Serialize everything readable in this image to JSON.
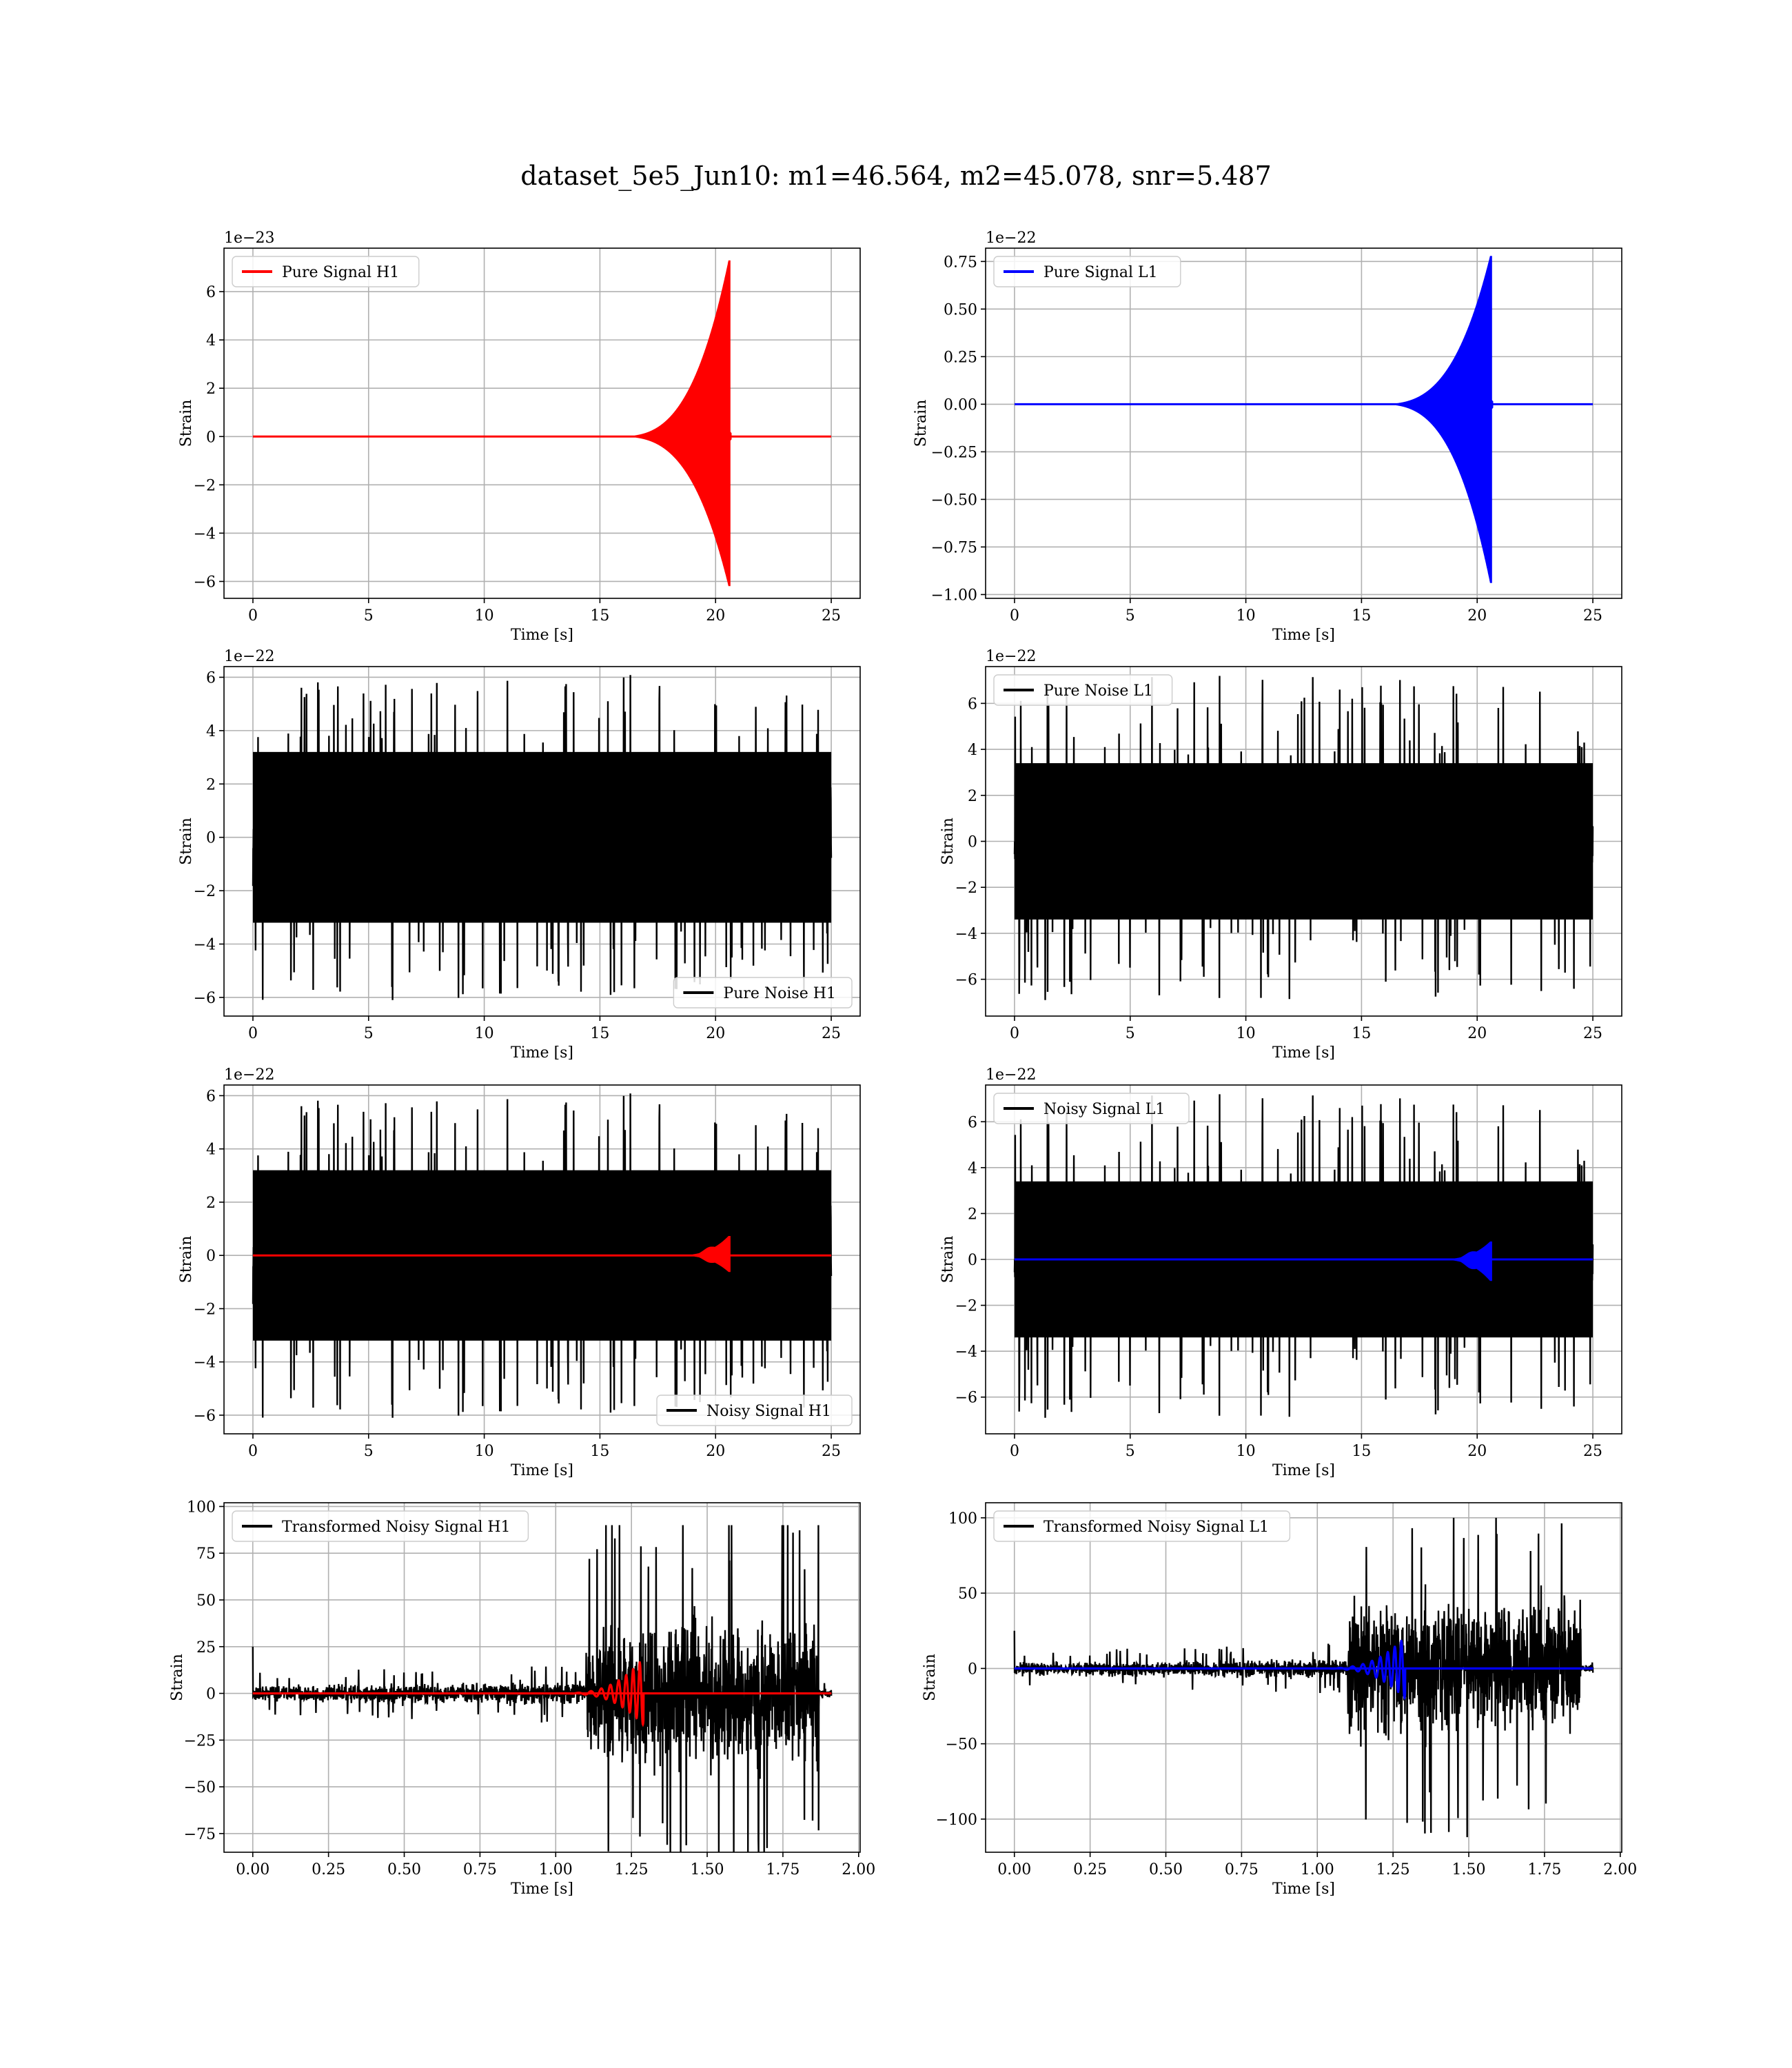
{
  "figure": {
    "title": "dataset_5e5_Jun10: m1=46.564, m2=45.078, snr=5.487"
  },
  "chart_data": [
    {
      "id": "pure-signal-h1",
      "type": "line",
      "xlabel": "Time [s]",
      "ylabel": "Strain",
      "offset": "1e−23",
      "xlim": [
        -1.25,
        26.25
      ],
      "ylim": [
        -6.7,
        7.8
      ],
      "xticks": [
        0,
        5,
        10,
        15,
        20,
        25
      ],
      "xticklabels": [
        "0",
        "5",
        "10",
        "15",
        "20",
        "25"
      ],
      "yticks": [
        -6,
        -4,
        -2,
        0,
        2,
        4,
        6
      ],
      "yticklabels": [
        "−6",
        "−4",
        "−2",
        "0",
        "2",
        "4",
        "6"
      ],
      "grid": true,
      "legend": {
        "position": "upper-left",
        "entries": [
          {
            "label": "Pure Signal H1",
            "color": "#ff0000"
          }
        ]
      },
      "series": [
        {
          "name": "Pure Signal H1",
          "color": "#ff0000",
          "kind": "chirp",
          "x_start": 0,
          "x_end": 25,
          "chirp_start": 15.5,
          "merger": 20.6,
          "peak_pos": 7.3,
          "peak_neg": -6.2
        }
      ]
    },
    {
      "id": "pure-signal-l1",
      "type": "line",
      "xlabel": "Time [s]",
      "ylabel": "Strain",
      "offset": "1e−22",
      "xlim": [
        -1.25,
        26.25
      ],
      "ylim": [
        -1.02,
        0.82
      ],
      "xticks": [
        0,
        5,
        10,
        15,
        20,
        25
      ],
      "xticklabels": [
        "0",
        "5",
        "10",
        "15",
        "20",
        "25"
      ],
      "yticks": [
        -1.0,
        -0.75,
        -0.5,
        -0.25,
        0.0,
        0.25,
        0.5,
        0.75
      ],
      "yticklabels": [
        "−1.00",
        "−0.75",
        "−0.50",
        "−0.25",
        "0.00",
        "0.25",
        "0.50",
        "0.75"
      ],
      "grid": true,
      "legend": {
        "position": "upper-left",
        "entries": [
          {
            "label": "Pure Signal L1",
            "color": "#0000ff"
          }
        ]
      },
      "series": [
        {
          "name": "Pure Signal L1",
          "color": "#0000ff",
          "kind": "chirp",
          "x_start": 0,
          "x_end": 25,
          "chirp_start": 15.5,
          "merger": 20.6,
          "peak_pos": 0.78,
          "peak_neg": -0.94
        }
      ]
    },
    {
      "id": "pure-noise-h1",
      "type": "line",
      "xlabel": "Time [s]",
      "ylabel": "Strain",
      "offset": "1e−22",
      "xlim": [
        -1.25,
        26.25
      ],
      "ylim": [
        -6.7,
        6.4
      ],
      "xticks": [
        0,
        5,
        10,
        15,
        20,
        25
      ],
      "xticklabels": [
        "0",
        "5",
        "10",
        "15",
        "20",
        "25"
      ],
      "yticks": [
        -6,
        -4,
        -2,
        0,
        2,
        4,
        6
      ],
      "yticklabels": [
        "−6",
        "−4",
        "−2",
        "0",
        "2",
        "4",
        "6"
      ],
      "grid": true,
      "legend": {
        "position": "lower-right",
        "entries": [
          {
            "label": "Pure Noise H1",
            "color": "#000000"
          }
        ]
      },
      "series": [
        {
          "name": "Pure Noise H1",
          "color": "#000000",
          "kind": "noise",
          "x_start": 0,
          "x_end": 25,
          "band": 3.2,
          "spike_max": 6.1,
          "spike_min": -6.1,
          "seed": 11
        }
      ]
    },
    {
      "id": "pure-noise-l1",
      "type": "line",
      "xlabel": "Time [s]",
      "ylabel": "Strain",
      "offset": "1e−22",
      "xlim": [
        -1.25,
        26.25
      ],
      "ylim": [
        -7.6,
        7.6
      ],
      "xticks": [
        0,
        5,
        10,
        15,
        20,
        25
      ],
      "xticklabels": [
        "0",
        "5",
        "10",
        "15",
        "20",
        "25"
      ],
      "yticks": [
        -6,
        -4,
        -2,
        0,
        2,
        4,
        6
      ],
      "yticklabels": [
        "−6",
        "−4",
        "−2",
        "0",
        "2",
        "4",
        "6"
      ],
      "grid": true,
      "legend": {
        "position": "upper-left",
        "entries": [
          {
            "label": "Pure Noise L1",
            "color": "#000000"
          }
        ]
      },
      "series": [
        {
          "name": "Pure Noise L1",
          "color": "#000000",
          "kind": "noise",
          "x_start": 0,
          "x_end": 25,
          "band": 3.4,
          "spike_max": 7.2,
          "spike_min": -6.9,
          "seed": 23
        }
      ]
    },
    {
      "id": "noisy-signal-h1",
      "type": "line",
      "xlabel": "Time [s]",
      "ylabel": "Strain",
      "offset": "1e−22",
      "xlim": [
        -1.25,
        26.25
      ],
      "ylim": [
        -6.7,
        6.4
      ],
      "xticks": [
        0,
        5,
        10,
        15,
        20,
        25
      ],
      "xticklabels": [
        "0",
        "5",
        "10",
        "15",
        "20",
        "25"
      ],
      "yticks": [
        -6,
        -4,
        -2,
        0,
        2,
        4,
        6
      ],
      "yticklabels": [
        "−6",
        "−4",
        "−2",
        "0",
        "2",
        "4",
        "6"
      ],
      "grid": true,
      "legend": {
        "position": "lower-right",
        "entries": [
          {
            "label": "Noisy Signal H1",
            "color": "#000000"
          }
        ]
      },
      "series": [
        {
          "name": "Noisy Signal H1",
          "color": "#000000",
          "kind": "noise",
          "x_start": 0,
          "x_end": 25,
          "band": 3.2,
          "spike_max": 6.1,
          "spike_min": -6.1,
          "seed": 11
        },
        {
          "color": "#ff0000",
          "kind": "chirp",
          "x_start": 0,
          "x_end": 25,
          "chirp_start": 18.0,
          "merger": 20.6,
          "peak_pos": 0.73,
          "peak_neg": -0.62
        }
      ]
    },
    {
      "id": "noisy-signal-l1",
      "type": "line",
      "xlabel": "Time [s]",
      "ylabel": "Strain",
      "offset": "1e−22",
      "xlim": [
        -1.25,
        26.25
      ],
      "ylim": [
        -7.6,
        7.6
      ],
      "xticks": [
        0,
        5,
        10,
        15,
        20,
        25
      ],
      "xticklabels": [
        "0",
        "5",
        "10",
        "15",
        "20",
        "25"
      ],
      "yticks": [
        -6,
        -4,
        -2,
        0,
        2,
        4,
        6
      ],
      "yticklabels": [
        "−6",
        "−4",
        "−2",
        "0",
        "2",
        "4",
        "6"
      ],
      "grid": true,
      "legend": {
        "position": "upper-left",
        "entries": [
          {
            "label": "Noisy Signal L1",
            "color": "#000000"
          }
        ]
      },
      "series": [
        {
          "name": "Noisy Signal L1",
          "color": "#000000",
          "kind": "noise",
          "x_start": 0,
          "x_end": 25,
          "band": 3.4,
          "spike_max": 7.2,
          "spike_min": -6.9,
          "seed": 23
        },
        {
          "color": "#0000ff",
          "kind": "chirp",
          "x_start": 0,
          "x_end": 25,
          "chirp_start": 18.0,
          "merger": 20.6,
          "peak_pos": 0.78,
          "peak_neg": -0.94
        }
      ]
    },
    {
      "id": "transformed-h1",
      "type": "line",
      "xlabel": "Time [s]",
      "ylabel": "Strain",
      "offset": "",
      "xlim": [
        -0.095,
        2.005
      ],
      "ylim": [
        -85,
        102
      ],
      "xticks": [
        0,
        0.25,
        0.5,
        0.75,
        1.0,
        1.25,
        1.5,
        1.75,
        2.0
      ],
      "xticklabels": [
        "0.00",
        "0.25",
        "0.50",
        "0.75",
        "1.00",
        "1.25",
        "1.50",
        "1.75",
        "2.00"
      ],
      "yticks": [
        -75,
        -50,
        -25,
        0,
        25,
        50,
        75,
        100
      ],
      "yticklabels": [
        "−75",
        "−50",
        "−25",
        "0",
        "25",
        "50",
        "75",
        "100"
      ],
      "grid": true,
      "legend": {
        "position": "upper-left",
        "entries": [
          {
            "label": "Transformed Noisy Signal H1",
            "color": "#000000"
          }
        ]
      },
      "series": [
        {
          "name": "Transformed Noisy Signal H1",
          "color": "#000000",
          "kind": "whitened",
          "x_start": 0,
          "x_end": 1.91,
          "x_jump": 1.1,
          "x_drop": 1.87,
          "amp_low": 8,
          "amp_high": 60,
          "spike_max": 90,
          "spike_min": -85,
          "seed": 37
        },
        {
          "color": "#ff0000",
          "kind": "burst",
          "x_start": 0,
          "x_end": 1.91,
          "burst_start": 1.0,
          "merger": 1.29,
          "peak_pos": 19,
          "peak_neg": -17
        }
      ]
    },
    {
      "id": "transformed-l1",
      "type": "line",
      "xlabel": "Time [s]",
      "ylabel": "Strain",
      "offset": "",
      "xlim": [
        -0.095,
        2.005
      ],
      "ylim": [
        -122,
        110
      ],
      "xticks": [
        0,
        0.25,
        0.5,
        0.75,
        1.0,
        1.25,
        1.5,
        1.75,
        2.0
      ],
      "xticklabels": [
        "0.00",
        "0.25",
        "0.50",
        "0.75",
        "1.00",
        "1.25",
        "1.50",
        "1.75",
        "2.00"
      ],
      "yticks": [
        -100,
        -50,
        0,
        50,
        100
      ],
      "yticklabels": [
        "−100",
        "−50",
        "0",
        "50",
        "100"
      ],
      "grid": true,
      "legend": {
        "position": "upper-left",
        "entries": [
          {
            "label": "Transformed Noisy Signal L1",
            "color": "#000000"
          }
        ]
      },
      "series": [
        {
          "name": "Transformed Noisy Signal L1",
          "color": "#000000",
          "kind": "whitened",
          "x_start": 0,
          "x_end": 1.91,
          "x_jump": 1.1,
          "x_drop": 1.87,
          "amp_low": 8,
          "amp_high": 70,
          "spike_max": 100,
          "spike_min": -112,
          "seed": 53
        },
        {
          "color": "#0000ff",
          "kind": "burst",
          "x_start": 0,
          "x_end": 1.91,
          "burst_start": 1.0,
          "merger": 1.29,
          "peak_pos": 21,
          "peak_neg": -20
        }
      ]
    }
  ]
}
